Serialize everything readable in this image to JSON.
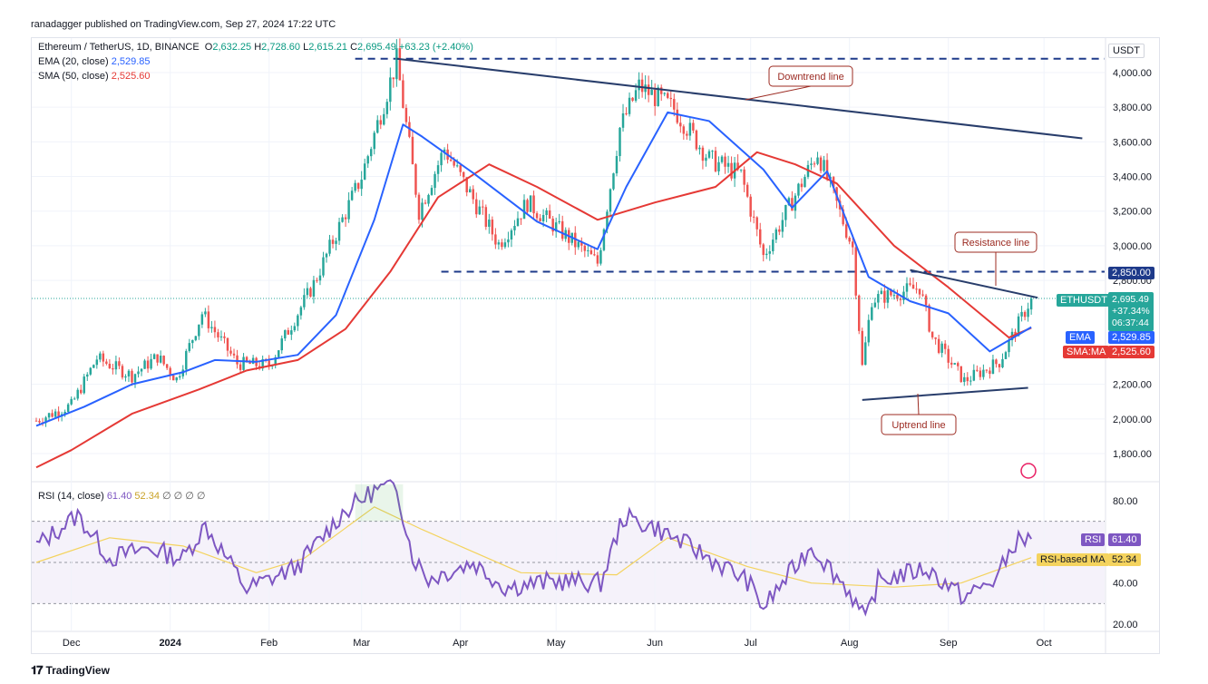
{
  "header": {
    "publisher": "ranadagger published on TradingView.com, Sep 27, 2024 17:22 UTC"
  },
  "legend": {
    "symbol": "Ethereum / TetherUS, 1D, BINANCE",
    "open_label": "O",
    "open": "2,632.25",
    "high_label": "H",
    "high": "2,728.60",
    "low_label": "L",
    "low": "2,615.21",
    "close_label": "C",
    "close": "2,695.49",
    "change": "+63.23 (+2.40%)",
    "ema_label": "EMA (20, close)",
    "ema_value": "2,529.85",
    "sma_label": "SMA (50, close)",
    "sma_value": "2,525.60",
    "rsi_label": "RSI (14, close)",
    "rsi_value": "61.40",
    "rsi_ma_value": "52.34",
    "rsi_extra": "∅ ∅ ∅ ∅"
  },
  "axis": {
    "currency": "USDT",
    "price_ticks": [
      "4,000.00",
      "3,800.00",
      "3,600.00",
      "3,400.00",
      "3,200.00",
      "3,000.00",
      "2,800.00",
      "2,200.00",
      "2,000.00",
      "1,800.00"
    ],
    "rsi_ticks": [
      "80.00",
      "60.00",
      "40.00",
      "20.00"
    ],
    "x_ticks": [
      "Dec",
      "2024",
      "Feb",
      "Mar",
      "Apr",
      "May",
      "Jun",
      "Jul",
      "Aug",
      "Sep",
      "Oct"
    ]
  },
  "tags": {
    "level_2850": "2,850.00",
    "symbol_tag": "ETHUSDT",
    "price": "2,695.49",
    "pct": "+37.34%",
    "countdown": "06:37:44",
    "ema_tag": "EMA",
    "ema_val": "2,529.85",
    "sma_tag": "SMA:MA",
    "sma_val": "2,525.60",
    "rsi_tag": "RSI",
    "rsi_val": "61.40",
    "rsi_ma_tag": "RSI-based MA",
    "rsi_ma_val": "52.34"
  },
  "annotations": {
    "downtrend": "Downtrend line",
    "resistance": "Resistance line",
    "uptrend": "Uptrend line"
  },
  "footer": {
    "brand": "TradingView"
  },
  "colors": {
    "up": "#26a69a",
    "down": "#ef5350",
    "ema": "#2962ff",
    "sma": "#e53935",
    "trend": "#283d6b",
    "rsi": "#7e57c2",
    "rsi_ma": "#f4d35e",
    "annotation": "#9c2b22"
  },
  "chart_data": {
    "type": "candlestick",
    "title": "Ethereum / TetherUS, 1D, BINANCE",
    "y_label": "USDT",
    "ylim": [
      1700,
      4150
    ],
    "x_range": [
      "2023-11-20",
      "2024-10-20"
    ],
    "price_path": [
      [
        "2023-11-20",
        1990
      ],
      [
        "2023-12-01",
        2080
      ],
      [
        "2023-12-09",
        2350
      ],
      [
        "2023-12-20",
        2250
      ],
      [
        "2023-12-28",
        2360
      ],
      [
        "2024-01-03",
        2230
      ],
      [
        "2024-01-11",
        2610
      ],
      [
        "2024-01-22",
        2320
      ],
      [
        "2024-02-01",
        2310
      ],
      [
        "2024-02-15",
        2780
      ],
      [
        "2024-03-01",
        3400
      ],
      [
        "2024-03-12",
        4070
      ],
      [
        "2024-03-19",
        3200
      ],
      [
        "2024-03-27",
        3560
      ],
      [
        "2024-04-13",
        3010
      ],
      [
        "2024-04-22",
        3250
      ],
      [
        "2024-05-14",
        2900
      ],
      [
        "2024-05-21",
        3680
      ],
      [
        "2024-05-27",
        3920
      ],
      [
        "2024-06-07",
        3790
      ],
      [
        "2024-06-18",
        3500
      ],
      [
        "2024-06-28",
        3410
      ],
      [
        "2024-07-05",
        2940
      ],
      [
        "2024-07-22",
        3540
      ],
      [
        "2024-08-02",
        2990
      ],
      [
        "2024-08-05",
        2300
      ],
      [
        "2024-08-08",
        2690
      ],
      [
        "2024-08-23",
        2760
      ],
      [
        "2024-08-27",
        2470
      ],
      [
        "2024-09-06",
        2220
      ],
      [
        "2024-09-17",
        2330
      ],
      [
        "2024-09-27",
        2695
      ]
    ],
    "last_candle": {
      "date": "2024-09-27",
      "open": 2632.25,
      "high": 2728.6,
      "low": 2615.21,
      "close": 2695.49
    },
    "series": [
      {
        "name": "EMA (20, close)",
        "points": [
          [
            "2023-11-20",
            1960
          ],
          [
            "2023-12-05",
            2070
          ],
          [
            "2023-12-20",
            2200
          ],
          [
            "2024-01-05",
            2270
          ],
          [
            "2024-01-15",
            2340
          ],
          [
            "2024-01-28",
            2330
          ],
          [
            "2024-02-10",
            2370
          ],
          [
            "2024-02-22",
            2600
          ],
          [
            "2024-03-05",
            3150
          ],
          [
            "2024-03-14",
            3700
          ],
          [
            "2024-03-20",
            3630
          ],
          [
            "2024-04-05",
            3420
          ],
          [
            "2024-04-25",
            3140
          ],
          [
            "2024-05-14",
            2980
          ],
          [
            "2024-05-23",
            3340
          ],
          [
            "2024-06-05",
            3770
          ],
          [
            "2024-06-18",
            3720
          ],
          [
            "2024-07-05",
            3440
          ],
          [
            "2024-07-14",
            3220
          ],
          [
            "2024-07-25",
            3430
          ],
          [
            "2024-08-07",
            2820
          ],
          [
            "2024-08-20",
            2680
          ],
          [
            "2024-09-01",
            2610
          ],
          [
            "2024-09-14",
            2390
          ],
          [
            "2024-09-27",
            2530
          ]
        ]
      },
      {
        "name": "SMA (50, close)",
        "points": [
          [
            "2023-11-20",
            1720
          ],
          [
            "2023-12-01",
            1820
          ],
          [
            "2023-12-20",
            2030
          ],
          [
            "2024-01-10",
            2170
          ],
          [
            "2024-01-25",
            2280
          ],
          [
            "2024-02-10",
            2340
          ],
          [
            "2024-02-25",
            2520
          ],
          [
            "2024-03-10",
            2850
          ],
          [
            "2024-03-25",
            3280
          ],
          [
            "2024-04-10",
            3470
          ],
          [
            "2024-04-25",
            3340
          ],
          [
            "2024-05-14",
            3150
          ],
          [
            "2024-06-01",
            3250
          ],
          [
            "2024-06-20",
            3340
          ],
          [
            "2024-07-03",
            3540
          ],
          [
            "2024-07-15",
            3470
          ],
          [
            "2024-07-28",
            3360
          ],
          [
            "2024-08-15",
            3000
          ],
          [
            "2024-09-01",
            2760
          ],
          [
            "2024-09-20",
            2470
          ],
          [
            "2024-09-27",
            2526
          ]
        ]
      }
    ],
    "levels": [
      {
        "price": 4080,
        "from": "2024-02-28",
        "to": "2024-10-20"
      },
      {
        "price": 2850,
        "from": "2024-03-26",
        "to": "2024-10-20"
      }
    ],
    "trendlines": [
      {
        "name": "Downtrend line",
        "from": [
          "2024-03-12",
          4080
        ],
        "to": [
          "2024-10-13",
          3620
        ]
      },
      {
        "name": "Resistance line",
        "from": [
          "2024-08-20",
          2860
        ],
        "to": [
          "2024-09-29",
          2700
        ]
      },
      {
        "name": "Uptrend line",
        "from": [
          "2024-08-05",
          2110
        ],
        "to": [
          "2024-09-26",
          2180
        ]
      }
    ],
    "rsi": {
      "ylim": [
        15,
        95
      ],
      "bands": [
        30,
        70
      ],
      "rsi_points": [
        [
          "2023-11-20",
          58
        ],
        [
          "2023-12-03",
          73
        ],
        [
          "2023-12-13",
          52
        ],
        [
          "2023-12-25",
          57
        ],
        [
          "2024-01-05",
          52
        ],
        [
          "2024-01-12",
          68
        ],
        [
          "2024-01-25",
          37
        ],
        [
          "2024-02-10",
          48
        ],
        [
          "2024-02-24",
          74
        ],
        [
          "2024-03-05",
          85
        ],
        [
          "2024-03-12",
          87
        ],
        [
          "2024-03-17",
          53
        ],
        [
          "2024-03-22",
          42
        ],
        [
          "2024-04-05",
          50
        ],
        [
          "2024-04-15",
          38
        ],
        [
          "2024-05-01",
          41
        ],
        [
          "2024-05-15",
          40
        ],
        [
          "2024-05-22",
          72
        ],
        [
          "2024-06-01",
          67
        ],
        [
          "2024-06-15",
          55
        ],
        [
          "2024-06-30",
          41
        ],
        [
          "2024-07-05",
          28
        ],
        [
          "2024-07-20",
          58
        ],
        [
          "2024-08-01",
          36
        ],
        [
          "2024-08-06",
          21
        ],
        [
          "2024-08-10",
          41
        ],
        [
          "2024-08-25",
          47
        ],
        [
          "2024-09-06",
          33
        ],
        [
          "2024-09-16",
          42
        ],
        [
          "2024-09-22",
          60
        ],
        [
          "2024-09-27",
          61.4
        ]
      ],
      "ma_points": [
        [
          "2023-11-20",
          50
        ],
        [
          "2023-12-13",
          62
        ],
        [
          "2024-01-05",
          58
        ],
        [
          "2024-01-28",
          45
        ],
        [
          "2024-02-12",
          52
        ],
        [
          "2024-03-05",
          77
        ],
        [
          "2024-03-20",
          66
        ],
        [
          "2024-04-20",
          45
        ],
        [
          "2024-05-20",
          44
        ],
        [
          "2024-06-05",
          62
        ],
        [
          "2024-06-30",
          48
        ],
        [
          "2024-07-20",
          40
        ],
        [
          "2024-08-15",
          38
        ],
        [
          "2024-09-05",
          40
        ],
        [
          "2024-09-27",
          52.34
        ]
      ]
    }
  }
}
